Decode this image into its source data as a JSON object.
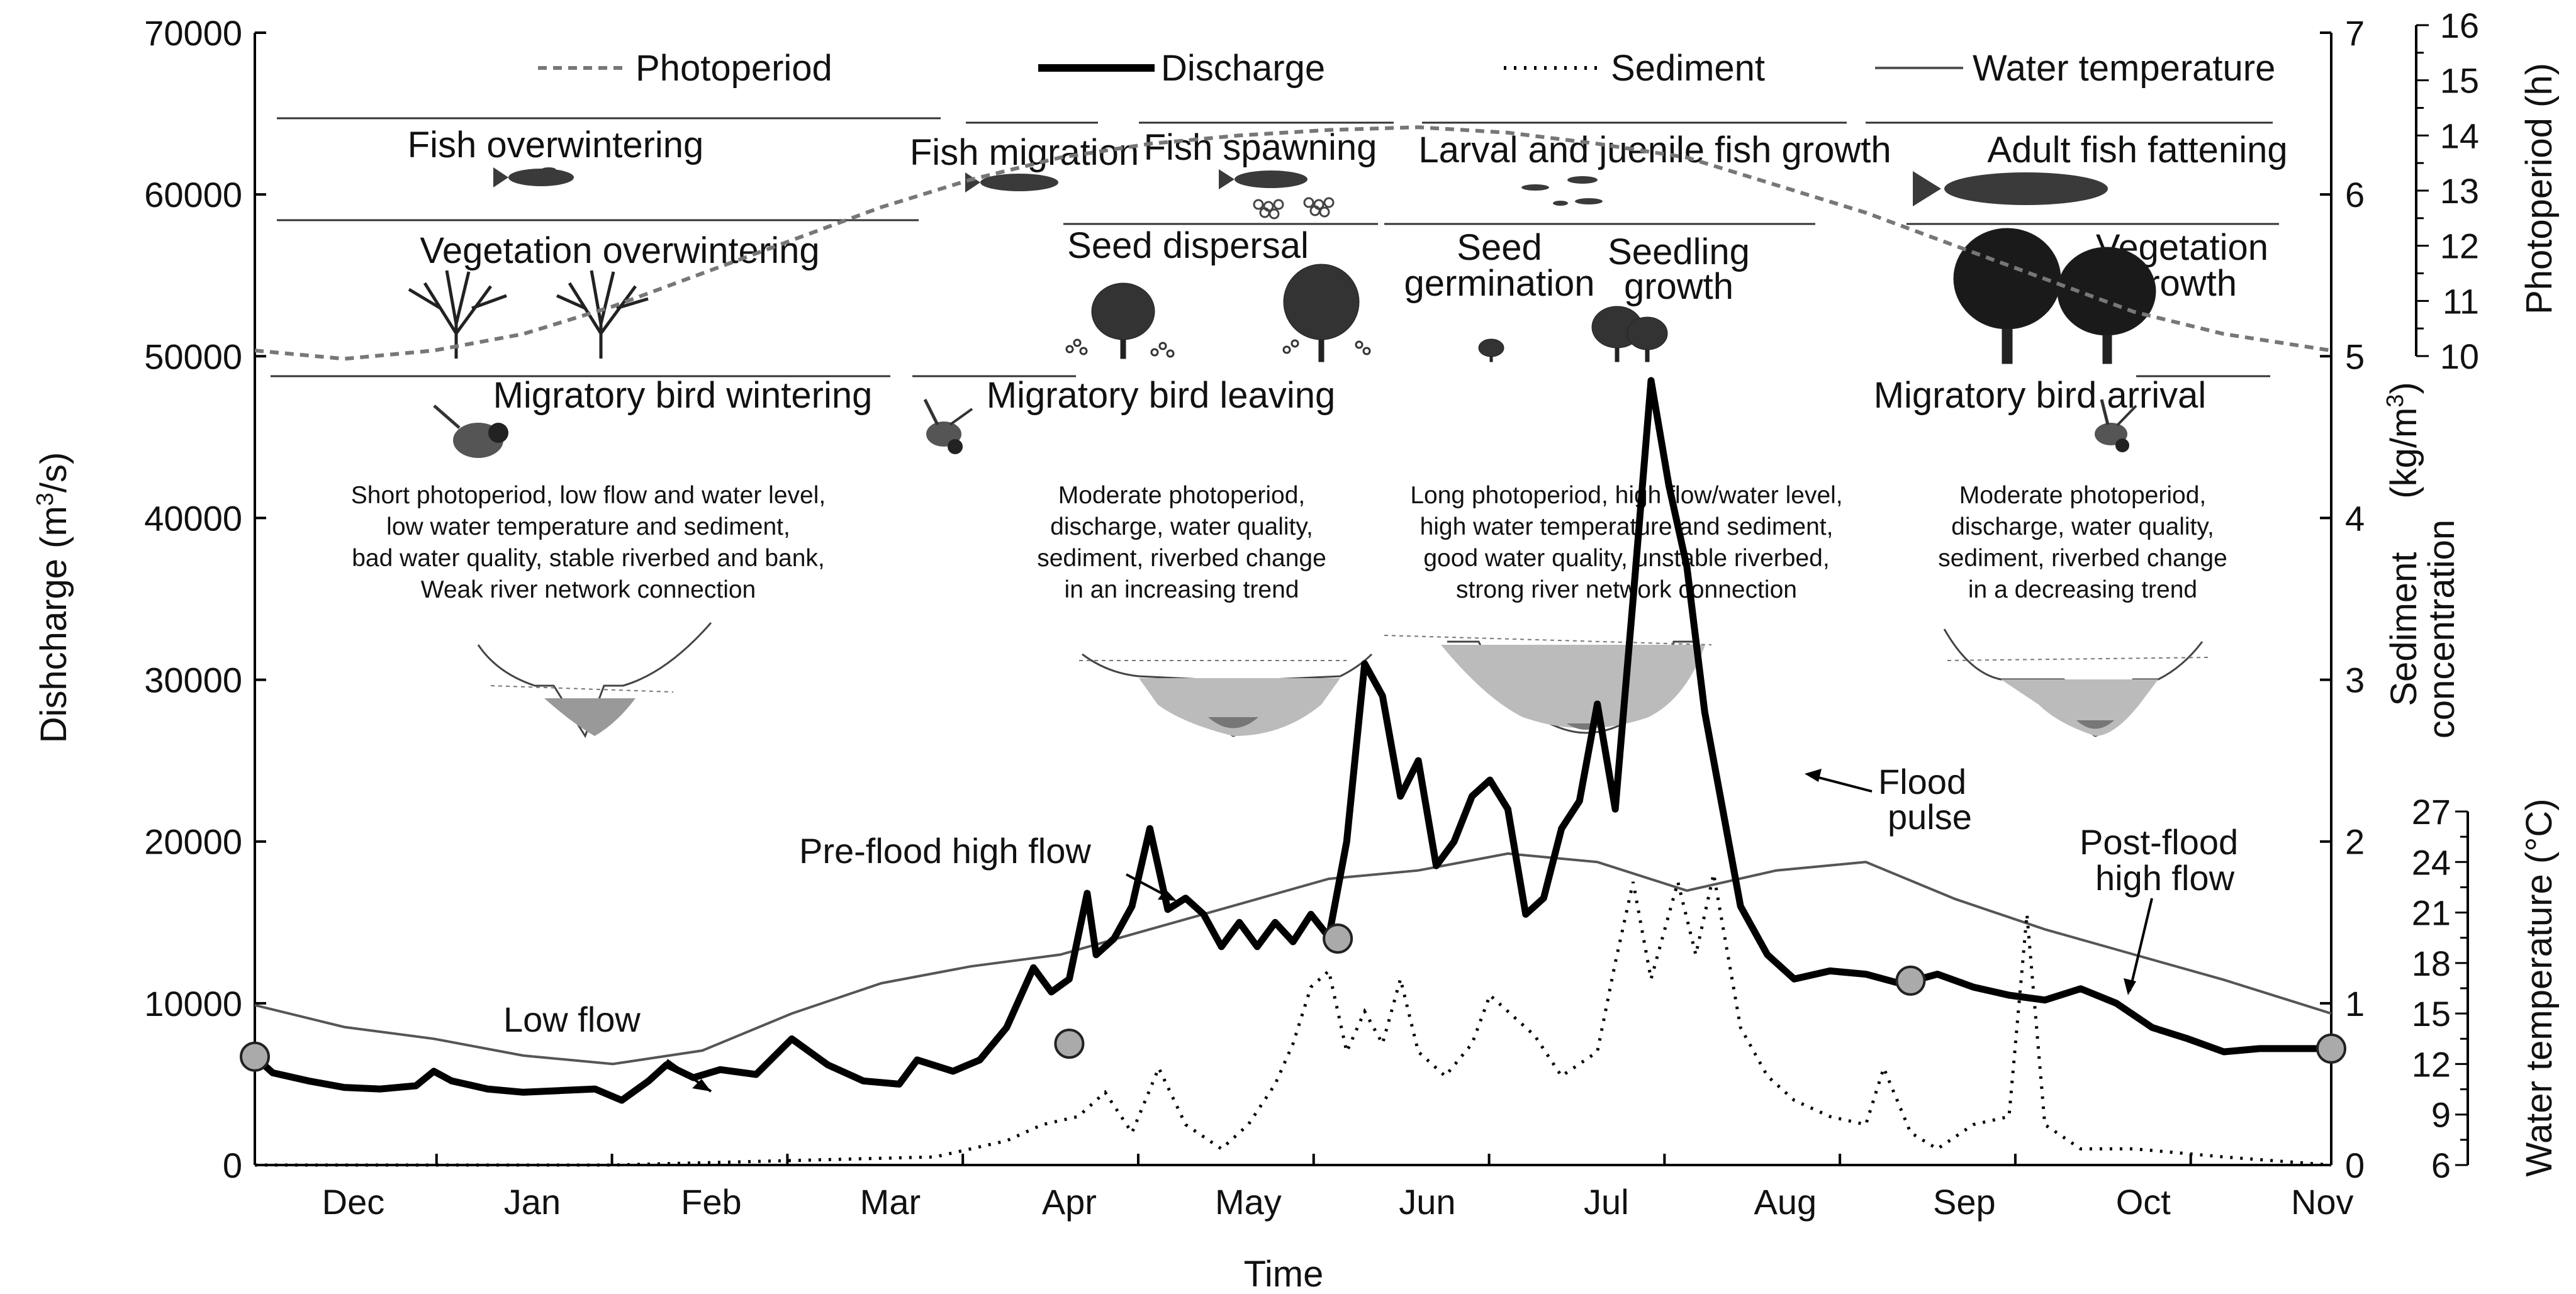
{
  "chart_data": {
    "type": "line",
    "xlabel": "Time",
    "months": [
      "Dec",
      "Jan",
      "Feb",
      "Mar",
      "Apr",
      "May",
      "Jun",
      "Jul",
      "Aug",
      "Sep",
      "Oct",
      "Nov"
    ],
    "axes": {
      "discharge": {
        "label_main": "Dishcharge (m",
        "label_sup": "3",
        "label_tail": "/s)",
        "range": [
          0,
          70000
        ],
        "ticks": [
          "0",
          "10000",
          "20000",
          "30000",
          "40000",
          "50000",
          "60000",
          "70000"
        ]
      },
      "sediment": {
        "label_line1": "Sediment",
        "label_line2": "concentration",
        "label_line3_main": "(kg/m",
        "label_line3_sup": "3",
        "label_line3_tail": ")",
        "range": [
          0,
          7
        ],
        "ticks": [
          "0",
          "1",
          "2",
          "3",
          "4",
          "5",
          "6",
          "7"
        ]
      },
      "photoperiod": {
        "label": "Photoperiod (h)",
        "range": [
          10,
          16
        ],
        "ticks": [
          "10",
          "11",
          "12",
          "13",
          "14",
          "15",
          "16"
        ]
      },
      "water_temperature": {
        "label": "Water temperature (°C)",
        "range": [
          6,
          27
        ],
        "ticks": [
          "6",
          "9",
          "12",
          "15",
          "18",
          "21",
          "24",
          "27"
        ]
      }
    },
    "legend": [
      {
        "name": "Photoperiod",
        "style": "dashed",
        "color": "#777777"
      },
      {
        "name": "Discharge",
        "style": "thick",
        "color": "#000000"
      },
      {
        "name": "Sediment",
        "style": "dotted",
        "color": "#000000"
      },
      {
        "name": "Water temperature",
        "style": "thin",
        "color": "#555555"
      }
    ],
    "series": [
      {
        "name": "Discharge",
        "unit": "m3/s",
        "points": [
          [
            0,
            6700
          ],
          [
            0.1,
            5700
          ],
          [
            0.3,
            5200
          ],
          [
            0.5,
            4800
          ],
          [
            0.7,
            4700
          ],
          [
            0.9,
            4900
          ],
          [
            1.0,
            5800
          ],
          [
            1.1,
            5200
          ],
          [
            1.3,
            4700
          ],
          [
            1.5,
            4500
          ],
          [
            1.7,
            4600
          ],
          [
            1.9,
            4700
          ],
          [
            2.05,
            4000
          ],
          [
            2.2,
            5200
          ],
          [
            2.3,
            6200
          ],
          [
            2.45,
            5400
          ],
          [
            2.6,
            5900
          ],
          [
            2.8,
            5600
          ],
          [
            3.0,
            7800
          ],
          [
            3.2,
            6200
          ],
          [
            3.4,
            5200
          ],
          [
            3.6,
            5000
          ],
          [
            3.7,
            6500
          ],
          [
            3.9,
            5800
          ],
          [
            4.05,
            6500
          ],
          [
            4.2,
            8500
          ],
          [
            4.35,
            12200
          ],
          [
            4.45,
            10700
          ],
          [
            4.55,
            11500
          ],
          [
            4.65,
            16800
          ],
          [
            4.7,
            13000
          ],
          [
            4.8,
            14000
          ],
          [
            4.9,
            16000
          ],
          [
            5.0,
            20800
          ],
          [
            5.1,
            15800
          ],
          [
            5.2,
            16500
          ],
          [
            5.3,
            15500
          ],
          [
            5.4,
            13500
          ],
          [
            5.5,
            15000
          ],
          [
            5.6,
            13500
          ],
          [
            5.7,
            15000
          ],
          [
            5.8,
            13800
          ],
          [
            5.9,
            15500
          ],
          [
            6.0,
            14100
          ],
          [
            6.1,
            20000
          ],
          [
            6.2,
            31000
          ],
          [
            6.3,
            29000
          ],
          [
            6.4,
            22800
          ],
          [
            6.5,
            25000
          ],
          [
            6.6,
            18500
          ],
          [
            6.7,
            20000
          ],
          [
            6.8,
            22800
          ],
          [
            6.9,
            23800
          ],
          [
            7.0,
            22000
          ],
          [
            7.1,
            15500
          ],
          [
            7.2,
            16500
          ],
          [
            7.3,
            20800
          ],
          [
            7.4,
            22500
          ],
          [
            7.5,
            28500
          ],
          [
            7.6,
            22000
          ],
          [
            7.7,
            35000
          ],
          [
            7.8,
            48500
          ],
          [
            7.9,
            42000
          ],
          [
            8.0,
            37000
          ],
          [
            8.1,
            28000
          ],
          [
            8.2,
            22000
          ],
          [
            8.3,
            16000
          ],
          [
            8.45,
            13000
          ],
          [
            8.6,
            11500
          ],
          [
            8.8,
            12000
          ],
          [
            9.0,
            11800
          ],
          [
            9.2,
            11200
          ],
          [
            9.4,
            11800
          ],
          [
            9.6,
            11000
          ],
          [
            9.8,
            10500
          ],
          [
            10.0,
            10200
          ],
          [
            10.2,
            10900
          ],
          [
            10.4,
            10000
          ],
          [
            10.6,
            8500
          ],
          [
            10.8,
            7800
          ],
          [
            11.0,
            7000
          ],
          [
            11.2,
            7200
          ],
          [
            11.4,
            7200
          ],
          [
            11.6,
            7200
          ]
        ]
      },
      {
        "name": "Sediment",
        "unit": "kg/m3",
        "points": [
          [
            0,
            0.0
          ],
          [
            2,
            0.0
          ],
          [
            3.8,
            0.05
          ],
          [
            4.2,
            0.15
          ],
          [
            4.4,
            0.25
          ],
          [
            4.6,
            0.3
          ],
          [
            4.75,
            0.45
          ],
          [
            4.9,
            0.2
          ],
          [
            5.05,
            0.6
          ],
          [
            5.2,
            0.25
          ],
          [
            5.4,
            0.1
          ],
          [
            5.55,
            0.25
          ],
          [
            5.7,
            0.5
          ],
          [
            5.8,
            0.75
          ],
          [
            5.9,
            1.1
          ],
          [
            6.0,
            1.2
          ],
          [
            6.1,
            0.7
          ],
          [
            6.2,
            0.95
          ],
          [
            6.3,
            0.75
          ],
          [
            6.4,
            1.15
          ],
          [
            6.5,
            0.7
          ],
          [
            6.65,
            0.55
          ],
          [
            6.8,
            0.75
          ],
          [
            6.9,
            1.05
          ],
          [
            7.0,
            0.95
          ],
          [
            7.15,
            0.8
          ],
          [
            7.3,
            0.55
          ],
          [
            7.5,
            0.7
          ],
          [
            7.6,
            1.25
          ],
          [
            7.7,
            1.75
          ],
          [
            7.8,
            1.15
          ],
          [
            7.95,
            1.75
          ],
          [
            8.05,
            1.3
          ],
          [
            8.15,
            1.8
          ],
          [
            8.3,
            0.85
          ],
          [
            8.45,
            0.55
          ],
          [
            8.6,
            0.4
          ],
          [
            8.8,
            0.3
          ],
          [
            9.0,
            0.25
          ],
          [
            9.1,
            0.6
          ],
          [
            9.25,
            0.2
          ],
          [
            9.4,
            0.1
          ],
          [
            9.6,
            0.25
          ],
          [
            9.8,
            0.3
          ],
          [
            9.9,
            1.55
          ],
          [
            10.0,
            0.25
          ],
          [
            10.2,
            0.1
          ],
          [
            10.5,
            0.1
          ],
          [
            11.0,
            0.05
          ],
          [
            11.6,
            0.0
          ]
        ]
      },
      {
        "name": "Photoperiod",
        "unit": "h",
        "points": [
          [
            0,
            10.1
          ],
          [
            0.5,
            9.95
          ],
          [
            1.0,
            10.1
          ],
          [
            1.5,
            10.4
          ],
          [
            2.0,
            10.9
          ],
          [
            2.5,
            11.5
          ],
          [
            3.0,
            12.1
          ],
          [
            3.5,
            12.7
          ],
          [
            4.0,
            13.2
          ],
          [
            4.5,
            13.6
          ],
          [
            5.0,
            13.85
          ],
          [
            5.5,
            14.0
          ],
          [
            6.0,
            14.1
          ],
          [
            6.5,
            14.15
          ],
          [
            7.0,
            14.05
          ],
          [
            7.5,
            13.85
          ],
          [
            8.0,
            13.6
          ],
          [
            8.5,
            13.1
          ],
          [
            9.0,
            12.6
          ],
          [
            9.5,
            12.0
          ],
          [
            10.0,
            11.4
          ],
          [
            10.5,
            10.8
          ],
          [
            11.0,
            10.4
          ],
          [
            11.6,
            10.1
          ]
        ]
      },
      {
        "name": "Water temperature",
        "unit": "degC",
        "points": [
          [
            0,
            15.5
          ],
          [
            0.5,
            14.2
          ],
          [
            1.0,
            13.5
          ],
          [
            1.5,
            12.5
          ],
          [
            2.0,
            12.0
          ],
          [
            2.5,
            12.8
          ],
          [
            3.0,
            15.0
          ],
          [
            3.5,
            16.8
          ],
          [
            4.0,
            17.8
          ],
          [
            4.5,
            18.5
          ],
          [
            5.0,
            20.0
          ],
          [
            5.5,
            21.5
          ],
          [
            6.0,
            23.0
          ],
          [
            6.5,
            23.5
          ],
          [
            7.0,
            24.5
          ],
          [
            7.5,
            24.0
          ],
          [
            8.0,
            22.3
          ],
          [
            8.5,
            23.5
          ],
          [
            9.0,
            24.0
          ],
          [
            9.5,
            21.8
          ],
          [
            10.0,
            20.0
          ],
          [
            10.5,
            18.5
          ],
          [
            11.0,
            17.0
          ],
          [
            11.6,
            15.0
          ]
        ]
      }
    ],
    "stage_markers": [
      [
        0,
        6700
      ],
      [
        4.55,
        7500
      ],
      [
        6.05,
        14000
      ],
      [
        9.25,
        11400
      ],
      [
        11.6,
        7200
      ]
    ],
    "annotations": [
      {
        "lines": [
          "Low flow"
        ]
      },
      {
        "lines": [
          "Pre-flood high flow"
        ]
      },
      {
        "lines": [
          "Flood",
          "pulse"
        ]
      },
      {
        "lines": [
          "Post-flood",
          "high flow"
        ]
      }
    ],
    "stages": {
      "fish": [
        "Fish overwintering",
        "Fish migration",
        "Fish spawning",
        "Larval and juenile fish growth",
        "Adult fish fattening"
      ],
      "vegetation": [
        "Vegetation overwintering",
        "Seed dispersal",
        "Seed",
        "germination",
        "Seedling",
        "growth",
        "Vegetation",
        "growth"
      ],
      "birds": [
        "Migratory bird wintering",
        "Migratory bird leaving",
        "Migratory bird arrival"
      ]
    },
    "descriptions": [
      [
        "Short photoperiod, low flow and water level,",
        "low water temperature and sediment,",
        "bad water quality, stable riverbed and bank,",
        "Weak river network connection"
      ],
      [
        "Moderate photoperiod,",
        "discharge, water quality,",
        "sediment, riverbed change",
        "in an increasing trend"
      ],
      [
        "Long photoperiod, high flow/water level,",
        "high water temperature and sediment,",
        "good water quality, unstable riverbed,",
        "strong river network connection"
      ],
      [
        "Moderate photoperiod,",
        "discharge, water quality,",
        "sediment, riverbed change",
        "in a decreasing trend"
      ]
    ]
  }
}
